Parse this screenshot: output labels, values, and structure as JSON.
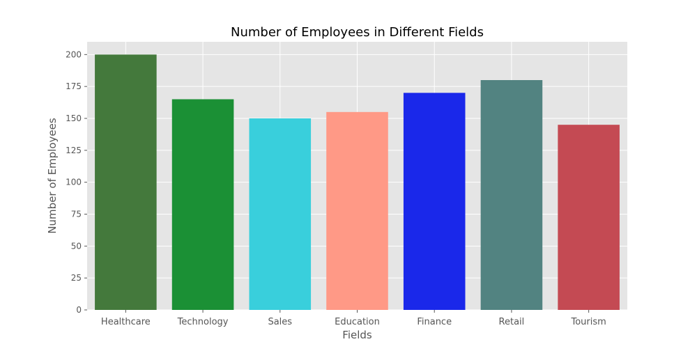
{
  "chart_data": {
    "type": "bar",
    "title": "Number of Employees in Different Fields",
    "xlabel": "Fields",
    "ylabel": "Number of Employees",
    "categories": [
      "Healthcare",
      "Technology",
      "Sales",
      "Education",
      "Finance",
      "Retail",
      "Tourism"
    ],
    "values": [
      200,
      165,
      150,
      155,
      170,
      180,
      145
    ],
    "colors": [
      "#44793c",
      "#1b9035",
      "#39cfdc",
      "#ff9986",
      "#1a28ea",
      "#528381",
      "#c44a53"
    ],
    "ylim": [
      0,
      210
    ],
    "yticks": [
      0,
      25,
      50,
      75,
      100,
      125,
      150,
      175,
      200
    ],
    "grid": true,
    "legend": "none",
    "style": {
      "plot_background": "#e5e5e5",
      "grid_color": "#ffffff",
      "tick_label_color": "#555555",
      "label_color": "#555555",
      "title_color": "#000000"
    }
  }
}
